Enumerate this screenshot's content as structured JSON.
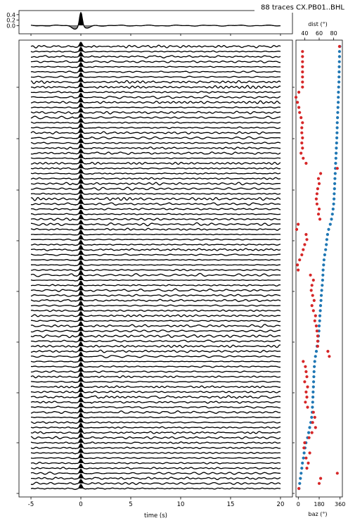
{
  "title": "88 traces  CX.PB01..BHL",
  "chart_data": [
    {
      "type": "line",
      "panel": "stack",
      "description_seed": 1,
      "n_traces": 88,
      "xlabel": "time (s)",
      "xticks": [
        -5,
        0,
        5,
        10,
        15,
        20
      ],
      "xlim": [
        -6.2,
        21.2
      ]
    },
    {
      "type": "line",
      "panel": "stack-summary",
      "yticks": [
        "0.4",
        "0.2",
        "0.0"
      ],
      "ylim": [
        -0.3,
        0.55
      ]
    },
    {
      "type": "scatter",
      "panel": "event-parameters",
      "series": [
        {
          "name": "dist (°)",
          "color": "#d62728",
          "axis": "top",
          "ticks": [
            "40",
            "60",
            "80"
          ],
          "xlim": [
            28,
            92
          ]
        },
        {
          "name": "baz (°)",
          "color": "#1f77b4",
          "axis": "bottom",
          "ticks": [
            "0",
            "180",
            "360"
          ],
          "xlim": [
            -20,
            380
          ]
        }
      ],
      "dist": [
        88,
        37,
        37,
        37,
        37,
        37,
        37,
        37,
        37,
        32,
        28,
        30,
        32,
        33,
        35,
        37,
        36,
        36,
        37,
        36,
        37,
        35,
        38,
        42,
        85,
        62,
        59,
        60,
        58,
        57,
        56,
        57,
        60,
        59,
        61,
        31,
        29,
        42,
        43,
        40,
        38,
        36,
        33,
        30,
        31,
        48,
        52,
        50,
        49,
        51,
        53,
        50,
        52,
        55,
        54,
        56,
        57,
        58,
        58,
        58,
        72,
        74,
        38,
        41,
        42,
        43,
        40,
        44,
        42,
        43,
        41,
        44,
        52,
        54,
        51,
        55,
        50,
        46,
        40,
        39,
        47,
        42,
        45,
        43,
        85,
        62,
        60,
        32
      ],
      "baz": [
        358,
        355,
        355,
        354,
        353,
        352,
        351,
        350,
        348,
        346,
        345,
        344,
        342,
        340,
        338,
        336,
        335,
        334,
        332,
        330,
        328,
        326,
        324,
        322,
        320,
        318,
        316,
        314,
        312,
        310,
        308,
        305,
        300,
        294,
        286,
        276,
        262,
        252,
        246,
        242,
        236,
        228,
        222,
        218,
        214,
        212,
        210,
        206,
        202,
        198,
        196,
        192,
        190,
        186,
        184,
        180,
        178,
        174,
        170,
        162,
        156,
        148,
        142,
        138,
        136,
        134,
        132,
        130,
        128,
        126,
        124,
        122,
        120,
        115,
        108,
        98,
        90,
        80,
        66,
        58,
        50,
        44,
        36,
        30,
        24,
        18,
        12,
        6
      ],
      "note_seed": 7
    }
  ]
}
